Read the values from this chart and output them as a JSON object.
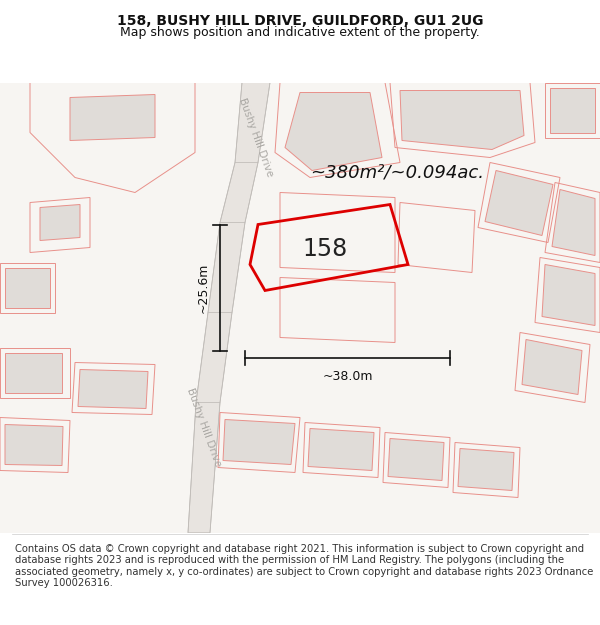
{
  "title_line1": "158, BUSHY HILL DRIVE, GUILDFORD, GU1 2UG",
  "title_line2": "Map shows position and indicative extent of the property.",
  "footer_text": "Contains OS data © Crown copyright and database right 2021. This information is subject to Crown copyright and database rights 2023 and is reproduced with the permission of HM Land Registry. The polygons (including the associated geometry, namely x, y co-ordinates) are subject to Crown copyright and database rights 2023 Ordnance Survey 100026316.",
  "map_bg_color": "#f7f5f2",
  "highlight_color": "#dd0000",
  "road_label": "Bushy Hill Drive",
  "road_label2": "Bushy Hill Drive",
  "area_label": "~380m²/~0.094ac.",
  "parcel_label": "158",
  "dim_width": "~38.0m",
  "dim_height": "~25.6m",
  "title_fontsize": 10,
  "subtitle_fontsize": 9,
  "footer_fontsize": 7.2,
  "bg_building_color": "#e0dcd8",
  "bg_building_edge": "#e8908a",
  "road_color": "#e8e4e0",
  "road_edge_color": "#c0bcb8",
  "dim_color": "#111111"
}
